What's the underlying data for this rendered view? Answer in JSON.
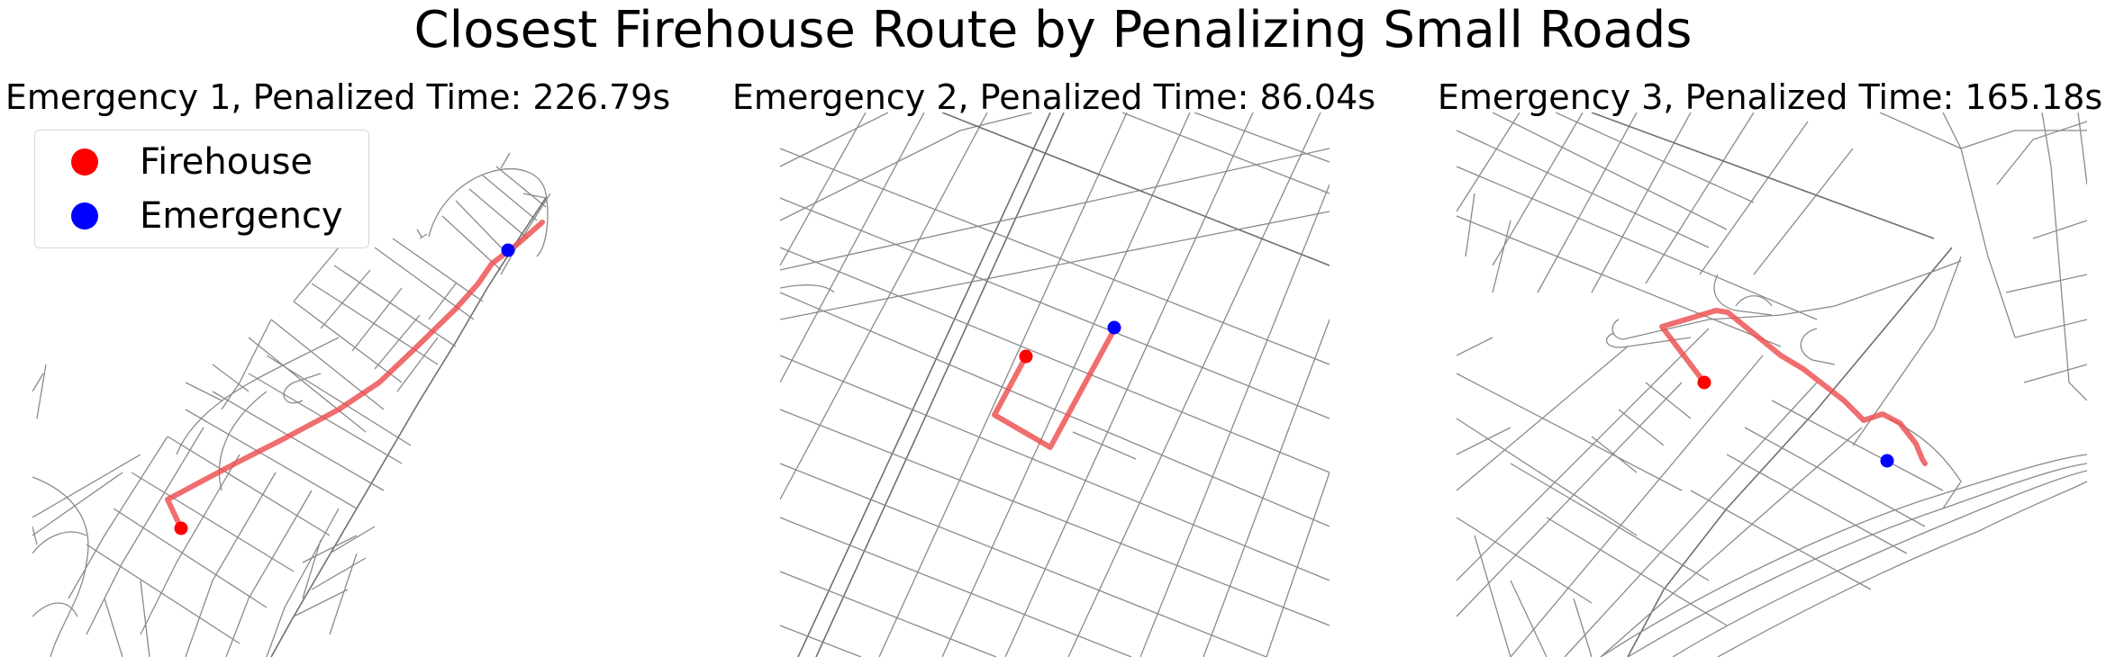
{
  "figure": {
    "title": "Closest Firehouse Route by Penalizing Small Roads"
  },
  "panels": [
    {
      "title": "Emergency 1, Penalized Time: 226.79s"
    },
    {
      "title": "Emergency 2, Penalized Time: 86.04s"
    },
    {
      "title": "Emergency 3, Penalized Time: 165.18s"
    }
  ],
  "legend": {
    "items": [
      {
        "label": "Firehouse",
        "color": "#ff0000"
      },
      {
        "label": "Emergency",
        "color": "#0000ff"
      }
    ]
  },
  "colors": {
    "route": "#ec4a4a",
    "firehouse": "#ff0000",
    "emergency": "#0000ff",
    "road": "#8a8a8a"
  }
}
